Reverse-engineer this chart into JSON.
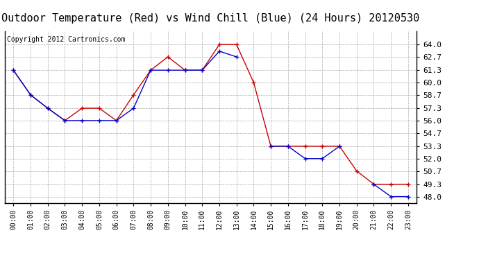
{
  "title": "Outdoor Temperature (Red) vs Wind Chill (Blue) (24 Hours) 20120530",
  "copyright": "Copyright 2012 Cartronics.com",
  "x_labels": [
    "00:00",
    "01:00",
    "02:00",
    "03:00",
    "04:00",
    "05:00",
    "06:00",
    "07:00",
    "08:00",
    "09:00",
    "10:00",
    "11:00",
    "12:00",
    "13:00",
    "14:00",
    "15:00",
    "16:00",
    "17:00",
    "18:00",
    "19:00",
    "20:00",
    "21:00",
    "22:00",
    "23:00"
  ],
  "red_data": [
    61.3,
    58.7,
    57.3,
    56.0,
    57.3,
    57.3,
    56.0,
    58.7,
    61.3,
    62.7,
    61.3,
    61.3,
    64.0,
    64.0,
    60.0,
    53.3,
    53.3,
    53.3,
    53.3,
    53.3,
    50.7,
    49.3,
    49.3,
    49.3
  ],
  "blue_data": [
    61.3,
    58.7,
    57.3,
    56.0,
    56.0,
    56.0,
    56.0,
    57.3,
    61.3,
    61.3,
    61.3,
    61.3,
    63.3,
    62.7,
    null,
    53.3,
    53.3,
    52.0,
    52.0,
    53.3,
    null,
    49.3,
    48.0,
    48.0
  ],
  "ylim": [
    47.35,
    65.4
  ],
  "yticks": [
    48.0,
    49.3,
    50.7,
    52.0,
    53.3,
    54.7,
    56.0,
    57.3,
    58.7,
    60.0,
    61.3,
    62.7,
    64.0
  ],
  "red_color": "#cc0000",
  "blue_color": "#0000cc",
  "bg_color": "#ffffff",
  "grid_color": "#aaaaaa",
  "title_fontsize": 11,
  "copyright_fontsize": 7
}
